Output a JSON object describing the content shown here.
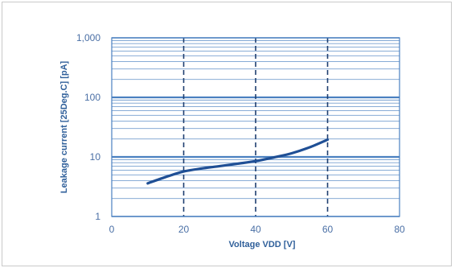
{
  "chart_data": {
    "type": "line",
    "title": "",
    "xlabel": "Voltage VDD [V]",
    "ylabel": "Leakage current [25Deg.C] [pA]",
    "x_scale": "linear",
    "y_scale": "log",
    "xlim": [
      0,
      80
    ],
    "ylim": [
      1,
      1000
    ],
    "x_ticks": [
      0,
      20,
      40,
      60,
      80
    ],
    "x_tick_labels": [
      "0",
      "20",
      "40",
      "60",
      "80"
    ],
    "y_ticks": [
      1,
      10,
      100,
      1000
    ],
    "y_tick_labels": [
      "1",
      "10",
      "100",
      "1,000"
    ],
    "grid": true,
    "colors": {
      "line": "#1f4f95",
      "grid": "#4a80c0",
      "text": "#4a6fa5"
    },
    "series": [
      {
        "name": "",
        "x": [
          10,
          15,
          20,
          25,
          30,
          35,
          40,
          45,
          50,
          55,
          60
        ],
        "y": [
          3.6,
          4.6,
          5.7,
          6.4,
          7.0,
          7.7,
          8.5,
          9.8,
          11.5,
          14.5,
          19.5
        ]
      }
    ]
  }
}
